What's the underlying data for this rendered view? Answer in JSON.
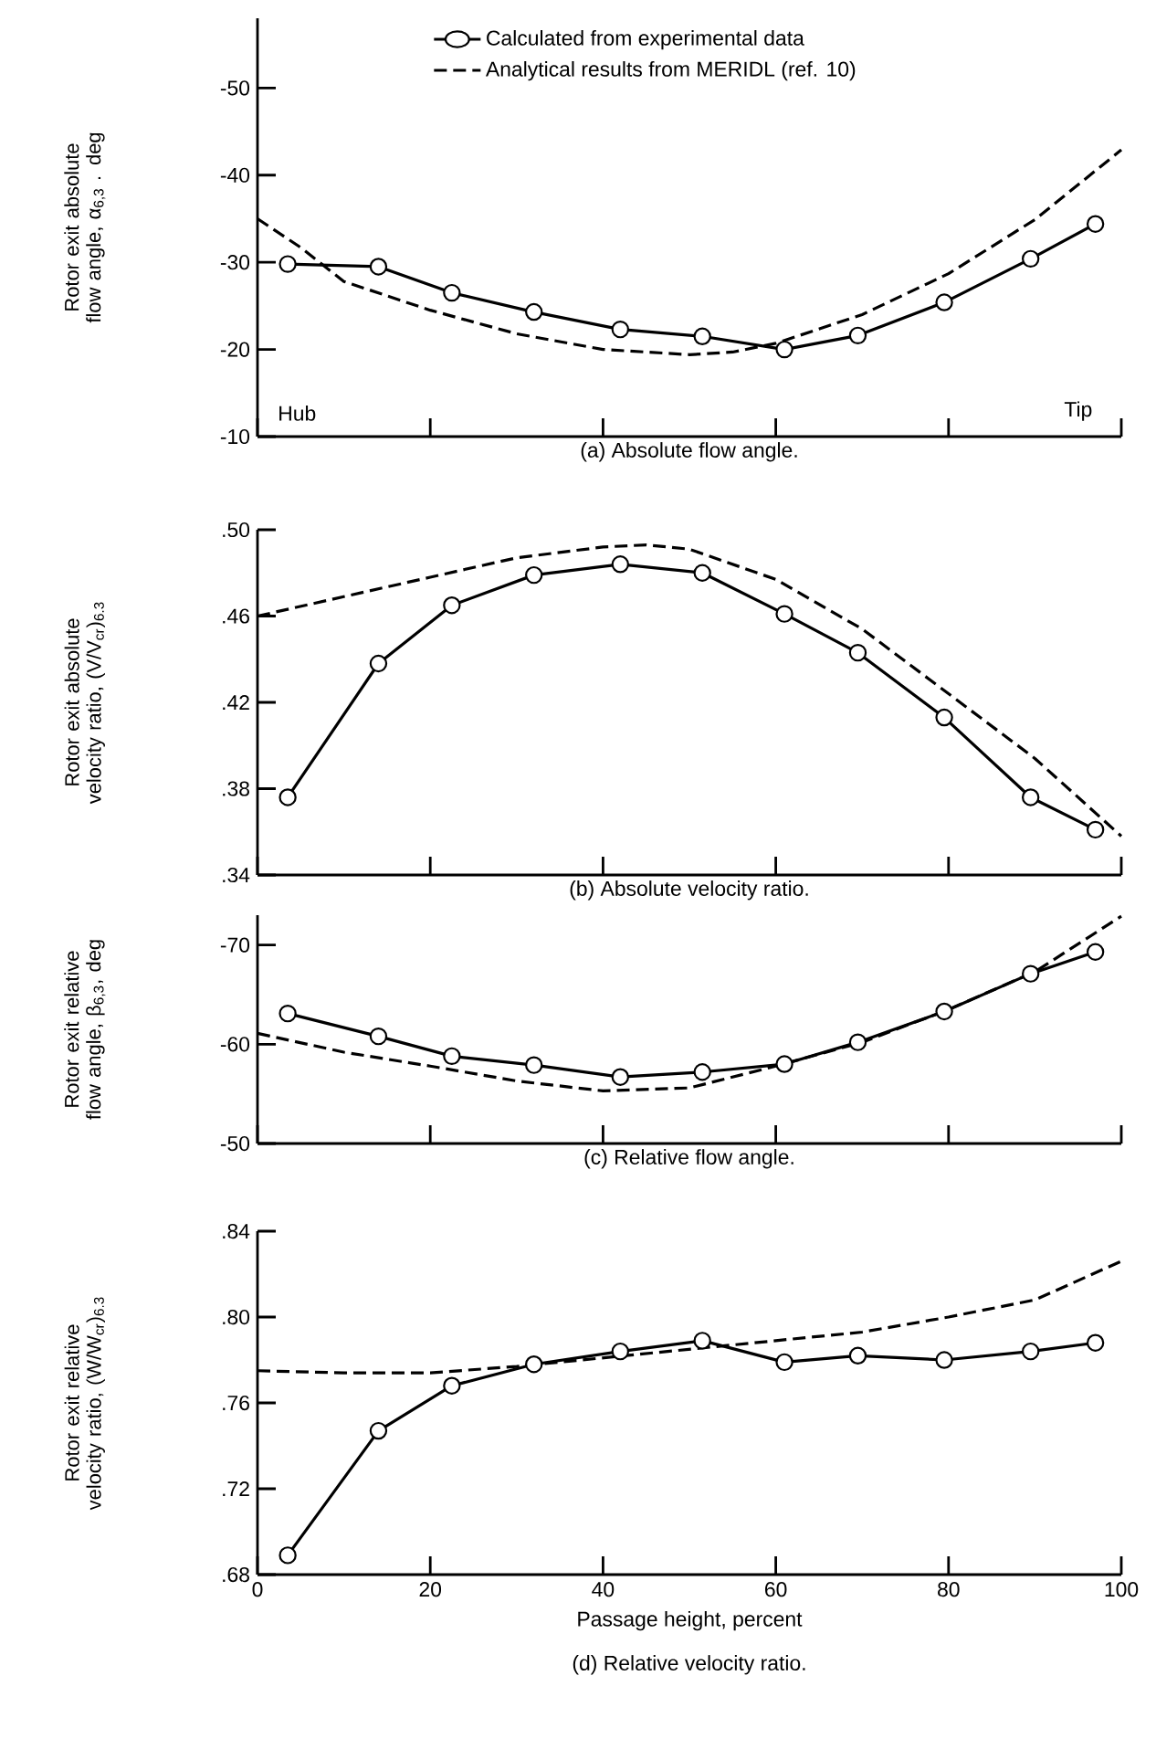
{
  "chart_data": [
    {
      "type": "line",
      "title": "(a) Absolute flow angle.",
      "ylabel": "Rotor exit absolute flow angle, α$_{6,3}$ . deg",
      "xlim": [
        0,
        100
      ],
      "xticks": [
        0,
        20,
        40,
        60,
        80,
        100
      ],
      "ylim": [
        -10,
        -58
      ],
      "yticks": [
        -50,
        -40,
        -30,
        -20,
        -10
      ],
      "tick_labels": "y",
      "legend": "top",
      "annotations": [
        "Hub",
        "Tip"
      ],
      "series": [
        {
          "name": "Calculated from experimental data",
          "color": "#000000",
          "marker": "circle",
          "line_style": "solid",
          "x": [
            3.5,
            14,
            22.5,
            32,
            42,
            51.5,
            61,
            69.5,
            79.5,
            89.5,
            97
          ],
          "values": [
            -29.8,
            -29.5,
            -26.5,
            -24.3,
            -22.3,
            -21.5,
            -20,
            -21.6,
            -25.4,
            -30.4,
            -34.4
          ]
        },
        {
          "name": "Analytical results from MERIDL (ref. 10)",
          "color": "#000000",
          "marker": "none",
          "line_style": "dashed",
          "x": [
            0,
            5,
            10,
            20,
            30,
            40,
            50,
            55,
            60,
            70,
            80,
            90,
            100
          ],
          "values": [
            -35,
            -31.7,
            -27.8,
            -24.5,
            -21.8,
            -20,
            -19.4,
            -19.7,
            -20.7,
            -24,
            -28.7,
            -34.9,
            -42.9
          ]
        }
      ]
    },
    {
      "type": "line",
      "title": "(b) Absolute velocity ratio.",
      "ylabel": "Rotor exit absolute velocity ratio, (V/V$_{cr}$)$_{6.3}$",
      "xlim": [
        0,
        100
      ],
      "xticks": [
        0,
        20,
        40,
        60,
        80,
        100
      ],
      "ylim": [
        0.34,
        0.5
      ],
      "yticks": [
        {
          "value": 0.34,
          "label": ".34"
        },
        {
          "value": 0.38,
          "label": ".38"
        },
        {
          "value": 0.42,
          "label": ".42"
        },
        {
          "value": 0.46,
          "label": ".46"
        },
        {
          "value": 0.5,
          "label": ".50"
        }
      ],
      "tick_labels": "y",
      "series": [
        {
          "color": "#000000",
          "marker": "circle",
          "line_style": "solid",
          "x": [
            3.5,
            14,
            22.5,
            32,
            42,
            51.5,
            61,
            69.5,
            79.5,
            89.5,
            97
          ],
          "values": [
            0.376,
            0.438,
            0.465,
            0.479,
            0.484,
            0.48,
            0.461,
            0.443,
            0.413,
            0.376,
            0.361
          ]
        },
        {
          "color": "#000000",
          "marker": "none",
          "line_style": "dashed",
          "x": [
            0,
            10,
            20,
            30,
            40,
            45,
            50,
            60,
            70,
            80,
            90,
            100
          ],
          "values": [
            0.46,
            0.469,
            0.478,
            0.487,
            0.492,
            0.493,
            0.491,
            0.477,
            0.454,
            0.424,
            0.394,
            0.358
          ]
        }
      ]
    },
    {
      "type": "line",
      "title": "(c) Relative flow angle.",
      "ylabel": "Rotor exit relative flow angle, β$_{6,3}$, deg",
      "xlim": [
        0,
        100
      ],
      "xticks": [
        0,
        20,
        40,
        60,
        80,
        100
      ],
      "ylim": [
        -50,
        -73
      ],
      "yticks": [
        -70,
        -60,
        -50
      ],
      "tick_labels": "y",
      "series": [
        {
          "color": "#000000",
          "marker": "circle",
          "line_style": "solid",
          "x": [
            3.5,
            14,
            22.5,
            32,
            42,
            51.5,
            61,
            69.5,
            79.5,
            89.5,
            97
          ],
          "values": [
            -63.1,
            -60.8,
            -58.8,
            -57.9,
            -56.7,
            -57.2,
            -58,
            -60.2,
            -63.3,
            -67.1,
            -69.3
          ]
        },
        {
          "color": "#000000",
          "marker": "none",
          "line_style": "dashed",
          "x": [
            0,
            10,
            20,
            30,
            40,
            50,
            60,
            70,
            80,
            90,
            100
          ],
          "values": [
            -61.1,
            -59.2,
            -57.8,
            -56.3,
            -55.3,
            -55.6,
            -57.8,
            -60.2,
            -63.5,
            -67.3,
            -72.9
          ]
        }
      ]
    },
    {
      "type": "line",
      "title": "(d) Relative velocity ratio.",
      "xlabel": "Passage height, percent",
      "ylabel": "Rotor exit relative velocity ratio, (W/W$_{cr}$)$_{6.3}$",
      "xlim": [
        0,
        100
      ],
      "xticks": [
        0,
        20,
        40,
        60,
        80,
        100
      ],
      "ylim": [
        0.68,
        0.84
      ],
      "yticks": [
        {
          "value": 0.68,
          "label": ".68"
        },
        {
          "value": 0.72,
          "label": ".72"
        },
        {
          "value": 0.76,
          "label": ".76"
        },
        {
          "value": 0.8,
          "label": ".80"
        },
        {
          "value": 0.84,
          "label": ".84"
        }
      ],
      "series": [
        {
          "color": "#000000",
          "marker": "circle",
          "line_style": "solid",
          "x": [
            3.5,
            14,
            22.5,
            32,
            42,
            51.5,
            61,
            69.5,
            79.5,
            89.5,
            97
          ],
          "values": [
            0.689,
            0.747,
            0.768,
            0.778,
            0.784,
            0.789,
            0.779,
            0.782,
            0.78,
            0.784,
            0.788
          ]
        },
        {
          "color": "#000000",
          "marker": "none",
          "line_style": "dashed",
          "x": [
            0,
            10,
            20,
            30,
            40,
            50,
            60,
            70,
            80,
            90,
            100
          ],
          "values": [
            0.775,
            0.774,
            0.774,
            0.777,
            0.781,
            0.785,
            0.789,
            0.793,
            0.8,
            0.808,
            0.826
          ]
        }
      ]
    }
  ]
}
